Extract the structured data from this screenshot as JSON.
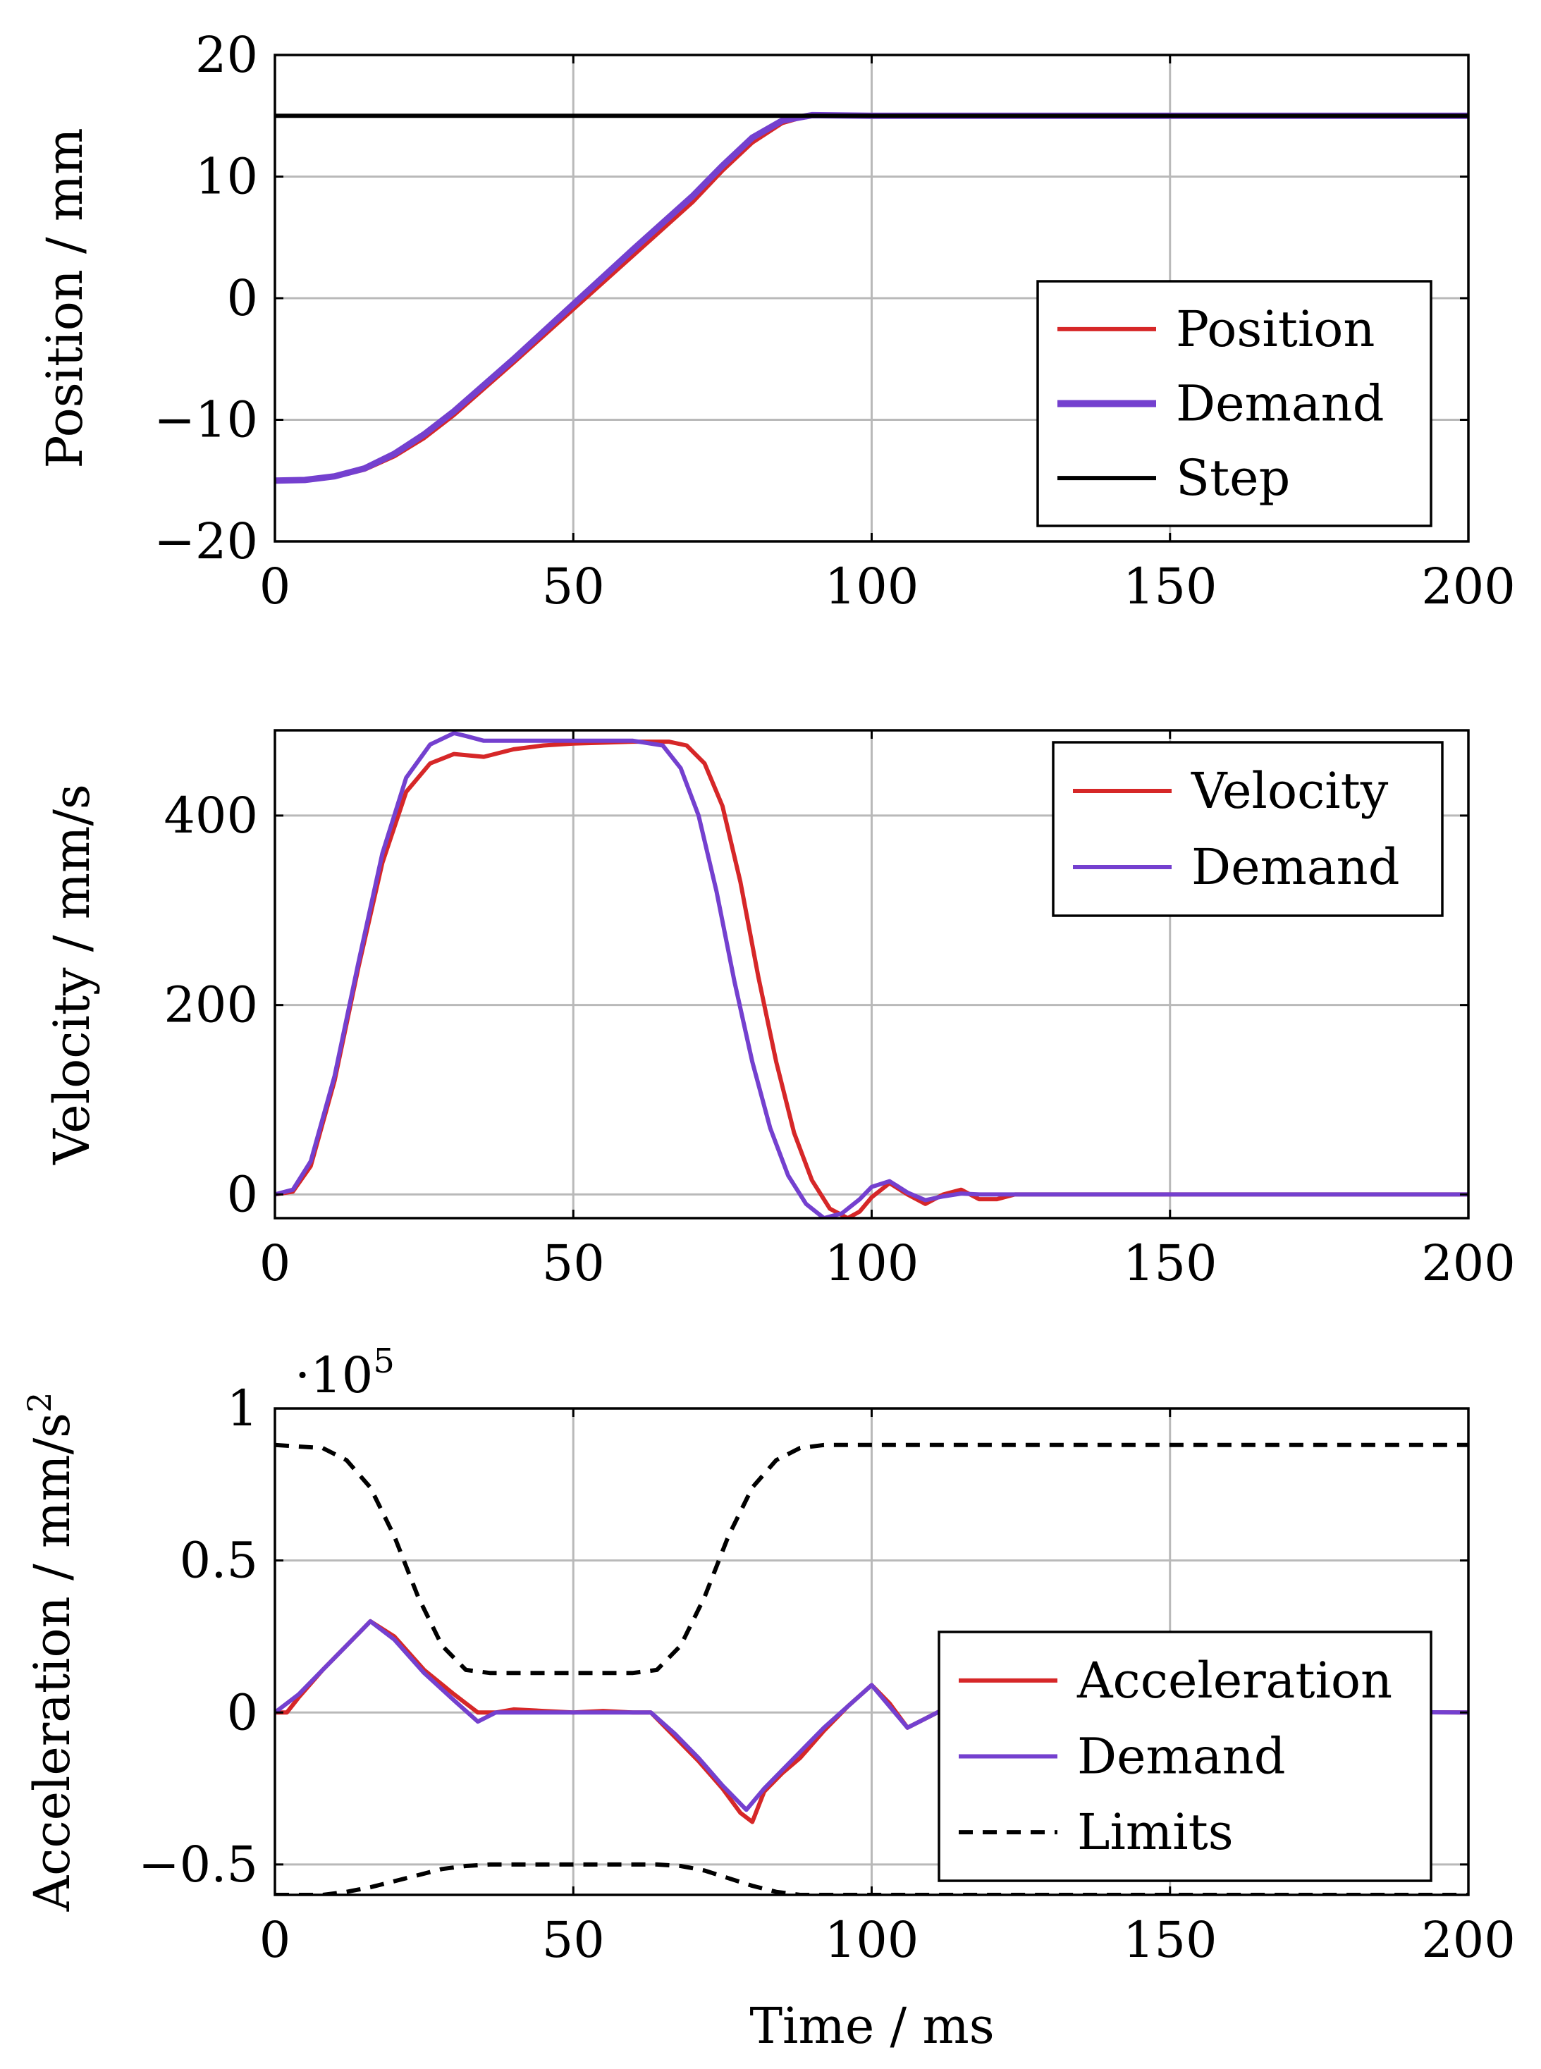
{
  "colors": {
    "red": "#d62728",
    "purple": "#7440cf",
    "black": "#000000"
  },
  "shared_xlabel": "Time / ms",
  "chart_data": [
    {
      "type": "line",
      "xlim": [
        0,
        200
      ],
      "ylim": [
        -20,
        20
      ],
      "xticks": [
        0,
        50,
        100,
        150,
        200
      ],
      "yticks": [
        -20,
        -10,
        0,
        10,
        20
      ],
      "xtick_labels": [
        "0",
        "50",
        "100",
        "150",
        "200"
      ],
      "ytick_labels": [
        "−20",
        "−10",
        "0",
        "10",
        "20"
      ],
      "ylabel": "Position / mm",
      "xlabel": "",
      "grid": true,
      "legend_position": "bottom-right",
      "series": [
        {
          "name": "Position",
          "color": "#d62728",
          "width": "normal",
          "x": [
            0,
            5,
            10,
            15,
            20,
            25,
            30,
            40,
            50,
            60,
            70,
            75,
            80,
            85,
            90,
            100,
            200
          ],
          "y": [
            -15,
            -14.95,
            -14.7,
            -14.1,
            -13,
            -11.5,
            -9.6,
            -5.3,
            -0.9,
            3.5,
            7.9,
            10.5,
            12.8,
            14.4,
            15.1,
            14.95,
            15
          ]
        },
        {
          "name": "Demand",
          "color": "#7440cf",
          "width": "thick",
          "x": [
            0,
            5,
            10,
            15,
            20,
            25,
            30,
            40,
            50,
            60,
            70,
            75,
            80,
            85,
            90,
            100,
            200
          ],
          "y": [
            -15,
            -14.95,
            -14.65,
            -14,
            -12.8,
            -11.2,
            -9.3,
            -5,
            -0.5,
            4,
            8.4,
            10.9,
            13.2,
            14.6,
            15.05,
            15,
            15
          ]
        },
        {
          "name": "Step",
          "color": "#000000",
          "width": "normal",
          "x": [
            0,
            200
          ],
          "y": [
            15,
            15
          ]
        }
      ]
    },
    {
      "type": "line",
      "xlim": [
        0,
        200
      ],
      "ylim": [
        -25,
        490
      ],
      "xticks": [
        0,
        50,
        100,
        150,
        200
      ],
      "yticks": [
        0,
        200,
        400
      ],
      "xtick_labels": [
        "0",
        "50",
        "100",
        "150",
        "200"
      ],
      "ytick_labels": [
        "0",
        "200",
        "400"
      ],
      "ylabel": "Velocity / mm/s",
      "xlabel": "",
      "grid": true,
      "legend_position": "top-right",
      "series": [
        {
          "name": "Velocity",
          "color": "#d62728",
          "width": "normal",
          "x": [
            0,
            3,
            6,
            10,
            14,
            18,
            22,
            26,
            30,
            35,
            40,
            45,
            50,
            55,
            60,
            66,
            69,
            72,
            75,
            78,
            81,
            84,
            87,
            90,
            93,
            96,
            98,
            100,
            103,
            106,
            109,
            112,
            115,
            118,
            121,
            124,
            200
          ],
          "y": [
            0,
            3,
            30,
            120,
            240,
            350,
            425,
            455,
            465,
            462,
            470,
            474,
            476,
            477,
            478,
            478,
            474,
            455,
            410,
            330,
            230,
            140,
            65,
            15,
            -15,
            -25,
            -18,
            -3,
            12,
            0,
            -10,
            0,
            5,
            -5,
            -5,
            0,
            0
          ]
        },
        {
          "name": "Demand",
          "color": "#7440cf",
          "width": "normal",
          "x": [
            0,
            3,
            6,
            10,
            14,
            18,
            22,
            26,
            30,
            32,
            35,
            40,
            45,
            50,
            55,
            60,
            65,
            68,
            71,
            74,
            77,
            80,
            83,
            86,
            89,
            92,
            95,
            98,
            100,
            103,
            106,
            109,
            112,
            115,
            118,
            200
          ],
          "y": [
            0,
            5,
            35,
            125,
            245,
            360,
            440,
            475,
            487,
            484,
            479,
            479,
            479,
            479,
            479,
            479,
            474,
            450,
            400,
            320,
            225,
            140,
            70,
            20,
            -10,
            -25,
            -20,
            -5,
            8,
            14,
            2,
            -6,
            -2,
            1,
            0,
            0
          ]
        }
      ]
    },
    {
      "type": "line",
      "xlim": [
        0,
        200
      ],
      "ylim": [
        -0.6,
        1.0
      ],
      "xticks": [
        0,
        50,
        100,
        150,
        200
      ],
      "yticks": [
        -0.5,
        0,
        0.5,
        1
      ],
      "xtick_labels": [
        "0",
        "50",
        "100",
        "150",
        "200"
      ],
      "ytick_labels": [
        "−0.5",
        "0",
        "0.5",
        "1"
      ],
      "y_scale_label_base": "·10",
      "y_scale_label_exponent": "5",
      "ylabel_main": "Acceleration / mm/s",
      "ylabel_superscript": "2",
      "xlabel": "Time / ms",
      "grid": true,
      "legend_position": "bottom-right",
      "series": [
        {
          "name": "Acceleration",
          "color": "#d62728",
          "width": "normal",
          "x": [
            0,
            2,
            4,
            8,
            12,
            16,
            20,
            25,
            30,
            34,
            37,
            40,
            45,
            50,
            55,
            60,
            63,
            67,
            71,
            75,
            78,
            80,
            82,
            85,
            88,
            92,
            96,
            100,
            103,
            106,
            109,
            112,
            200
          ],
          "y": [
            0,
            0,
            0.05,
            0.14,
            0.22,
            0.3,
            0.25,
            0.14,
            0.06,
            0.0,
            0.0,
            0.01,
            0.005,
            0.0,
            0.005,
            0.0,
            0.0,
            -0.08,
            -0.16,
            -0.25,
            -0.33,
            -0.36,
            -0.26,
            -0.2,
            -0.15,
            -0.06,
            0.02,
            0.09,
            0.03,
            -0.05,
            -0.02,
            0.01,
            0.0
          ]
        },
        {
          "name": "Demand",
          "color": "#7440cf",
          "width": "normal",
          "x": [
            0,
            4,
            8,
            12,
            16,
            20,
            25,
            30,
            34,
            37,
            40,
            45,
            50,
            55,
            60,
            63,
            67,
            71,
            75,
            79,
            82,
            85,
            88,
            92,
            96,
            100,
            103,
            106,
            109,
            112,
            200
          ],
          "y": [
            0,
            0.06,
            0.14,
            0.22,
            0.3,
            0.24,
            0.13,
            0.04,
            -0.03,
            0.0,
            0.0,
            0.0,
            0.0,
            0.0,
            0.0,
            0.0,
            -0.07,
            -0.15,
            -0.24,
            -0.32,
            -0.25,
            -0.19,
            -0.13,
            -0.05,
            0.02,
            0.09,
            0.02,
            -0.05,
            -0.02,
            0.01,
            0.0
          ]
        },
        {
          "name": "Limits",
          "color": "#000000",
          "width": "normal",
          "dash": true,
          "x": [
            0,
            8,
            12,
            16,
            20,
            24,
            28,
            32,
            36,
            40,
            50,
            60,
            64,
            68,
            72,
            76,
            80,
            84,
            88,
            92,
            200
          ],
          "y": [
            0.88,
            0.87,
            0.83,
            0.74,
            0.58,
            0.38,
            0.22,
            0.14,
            0.13,
            0.13,
            0.13,
            0.13,
            0.14,
            0.22,
            0.38,
            0.58,
            0.74,
            0.83,
            0.87,
            0.88,
            0.88
          ]
        },
        {
          "name": "",
          "color": "#000000",
          "width": "normal",
          "dash": true,
          "legend": false,
          "x": [
            0,
            8,
            12,
            16,
            20,
            24,
            28,
            32,
            36,
            40,
            50,
            60,
            64,
            68,
            72,
            76,
            80,
            84,
            88,
            92,
            200
          ],
          "y": [
            -0.6,
            -0.6,
            -0.59,
            -0.575,
            -0.555,
            -0.535,
            -0.515,
            -0.505,
            -0.5,
            -0.5,
            -0.5,
            -0.5,
            -0.5,
            -0.505,
            -0.52,
            -0.545,
            -0.57,
            -0.59,
            -0.6,
            -0.6,
            -0.6
          ]
        }
      ]
    }
  ]
}
